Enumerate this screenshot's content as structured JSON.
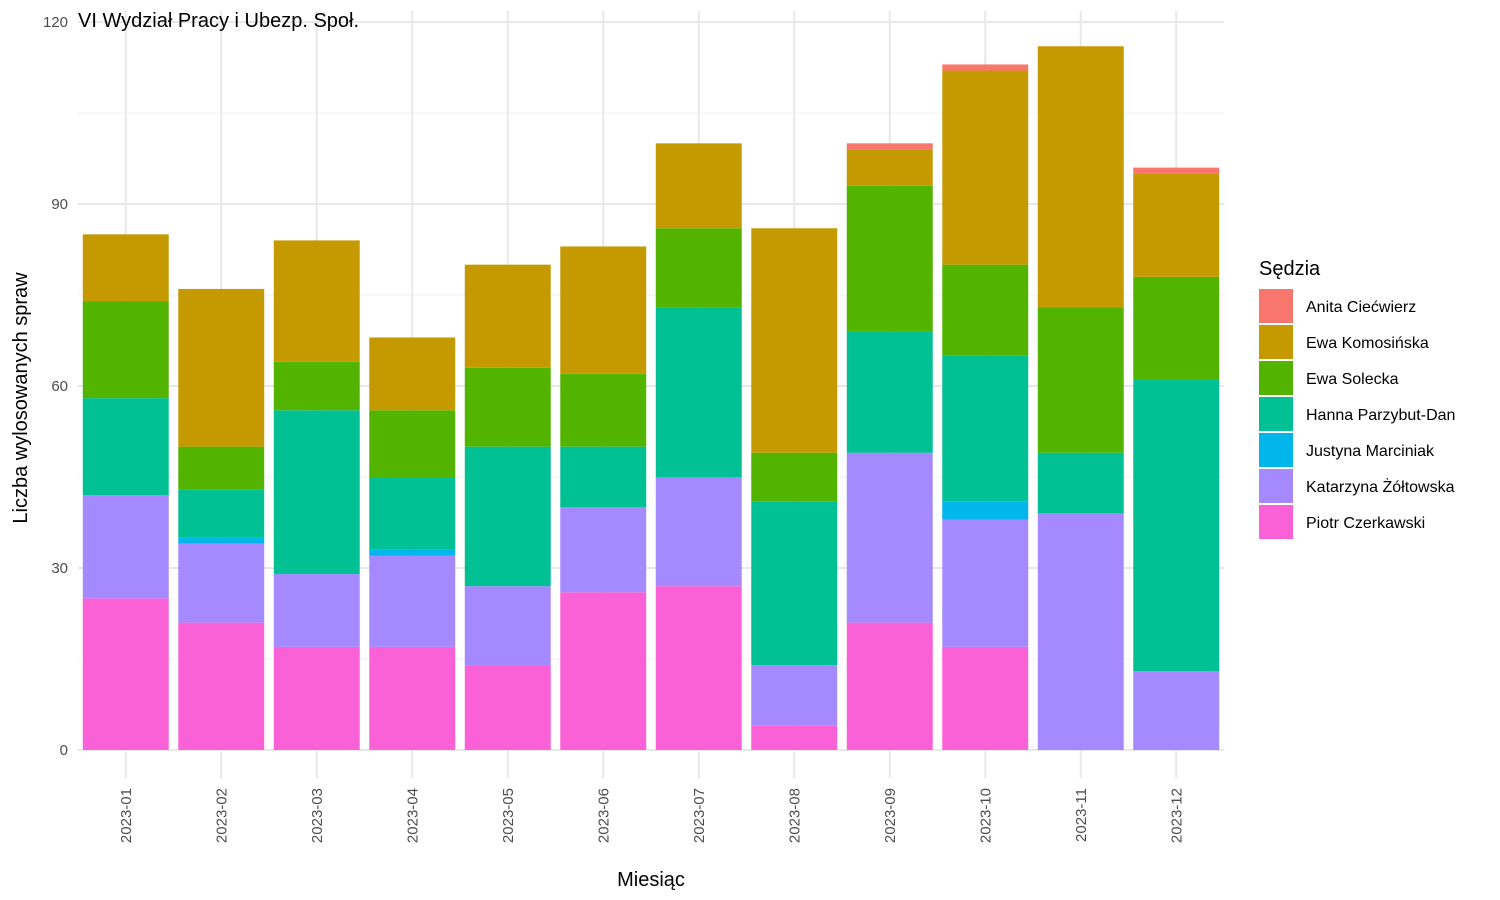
{
  "chart_data": {
    "type": "bar",
    "stacked": true,
    "title": "VI Wydział Pracy i Ubezp. Społ.",
    "xlabel": "Miesiąc",
    "ylabel": "Liczba wylosowanych spraw",
    "ylim": [
      0,
      120
    ],
    "yticks": [
      0,
      30,
      60,
      90,
      120
    ],
    "grid": true,
    "legend_title": "Sędzia",
    "legend_position": "right",
    "categories": [
      "2023-01",
      "2023-02",
      "2023-03",
      "2023-04",
      "2023-05",
      "2023-06",
      "2023-07",
      "2023-08",
      "2023-09",
      "2023-10",
      "2023-11",
      "2023-12"
    ],
    "series": [
      {
        "name": "Anita Ciećwierz",
        "color": "#F8766D",
        "values": [
          0,
          0,
          0,
          0,
          0,
          0,
          0,
          0,
          1,
          1,
          0,
          1
        ]
      },
      {
        "name": "Ewa Komosińska",
        "color": "#C49A00",
        "values": [
          11,
          26,
          20,
          12,
          17,
          21,
          14,
          37,
          6,
          32,
          43,
          17
        ]
      },
      {
        "name": "Ewa Solecka",
        "color": "#53B400",
        "values": [
          16,
          7,
          8,
          11,
          13,
          12,
          13,
          8,
          24,
          15,
          24,
          17
        ]
      },
      {
        "name": "Hanna Parzybut-Dan",
        "color": "#00C094",
        "values": [
          16,
          8,
          27,
          12,
          23,
          10,
          28,
          27,
          20,
          24,
          10,
          48
        ]
      },
      {
        "name": "Justyna Marciniak",
        "color": "#00B6EB",
        "values": [
          0,
          1,
          0,
          1,
          0,
          0,
          0,
          0,
          0,
          3,
          0,
          0
        ]
      },
      {
        "name": "Katarzyna Żółtowska",
        "color": "#A58AFF",
        "values": [
          17,
          13,
          12,
          15,
          13,
          14,
          18,
          10,
          28,
          21,
          39,
          13
        ]
      },
      {
        "name": "Piotr Czerkawski",
        "color": "#FB61D7",
        "values": [
          25,
          21,
          17,
          17,
          14,
          26,
          27,
          4,
          21,
          17,
          0,
          0
        ]
      }
    ]
  }
}
